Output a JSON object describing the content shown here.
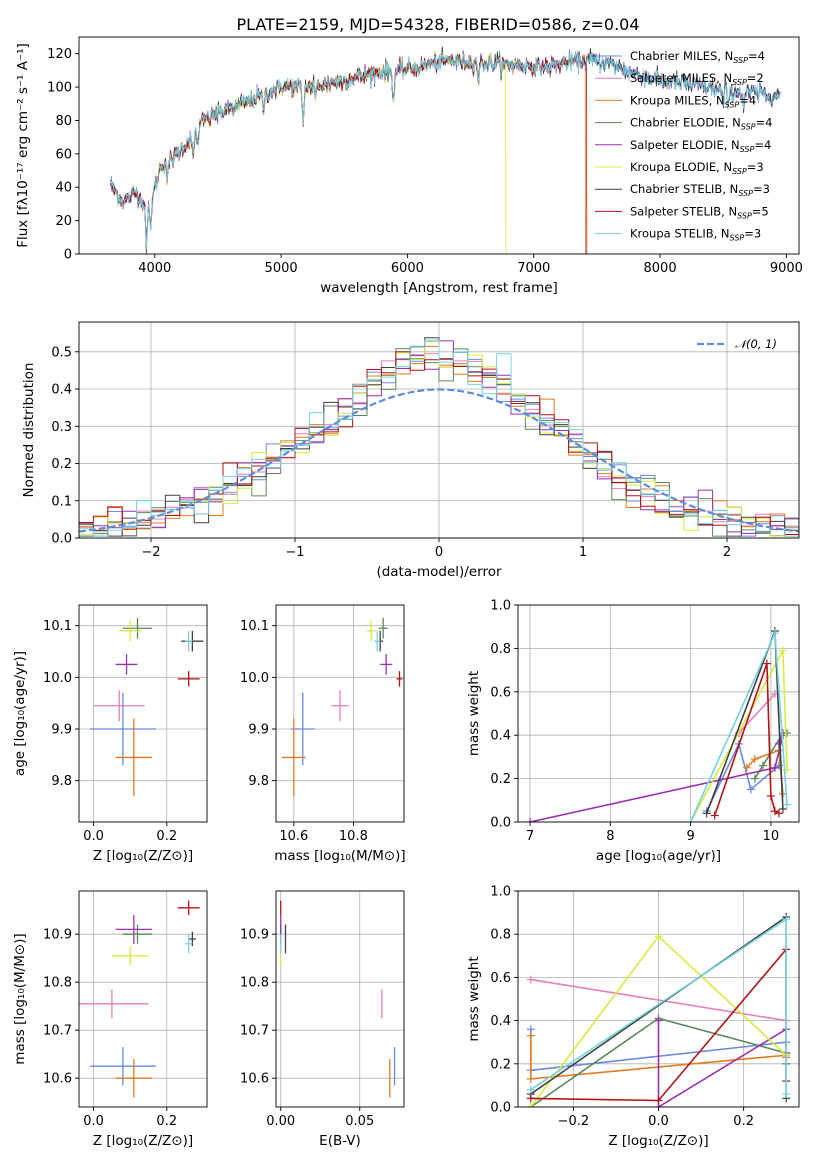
{
  "figure": {
    "title": "PLATE=2159, MJD=54328, FIBERID=0586, z=0.04"
  },
  "colors": {
    "chabrier_miles": "#6a8ae0",
    "salpeter_miles": "#e67fb9",
    "kroupa_miles": "#e07b23",
    "chabrier_elodie": "#5a8a5a",
    "salpeter_elodie": "#9b30b0",
    "kroupa_elodie": "#d4ec40",
    "chabrier_stelib": "#404040",
    "salpeter_stelib": "#b01414",
    "kroupa_stelib": "#74d3e0"
  },
  "legend_spectrum": [
    {
      "key": "chabrier_miles",
      "label": "Chabrier MILES, N",
      "sub": "SSP",
      "tail": "=4"
    },
    {
      "key": "salpeter_miles",
      "label": "Salpeter MILES, N",
      "sub": "SSP",
      "tail": "=2"
    },
    {
      "key": "kroupa_miles",
      "label": "Kroupa MILES, N",
      "sub": "SSP",
      "tail": "=4"
    },
    {
      "key": "chabrier_elodie",
      "label": "Chabrier ELODIE, N",
      "sub": "SSP",
      "tail": "=4"
    },
    {
      "key": "salpeter_elodie",
      "label": "Salpeter ELODIE, N",
      "sub": "SSP",
      "tail": "=4"
    },
    {
      "key": "kroupa_elodie",
      "label": "Kroupa ELODIE, N",
      "sub": "SSP",
      "tail": "=3"
    },
    {
      "key": "chabrier_stelib",
      "label": "Chabrier STELIB, N",
      "sub": "SSP",
      "tail": "=3"
    },
    {
      "key": "salpeter_stelib",
      "label": "Salpeter STELIB, N",
      "sub": "SSP",
      "tail": "=5"
    },
    {
      "key": "kroupa_stelib",
      "label": "Kroupa STELIB, N",
      "sub": "SSP",
      "tail": "=3"
    }
  ],
  "chart_data": [
    {
      "id": "spectrum",
      "type": "line",
      "xlabel": "wavelength [Angstrom, rest frame]",
      "ylabel": "Flux [fλ10⁻¹⁷ erg cm⁻² s⁻¹ A⁻¹]",
      "xlim": [
        3400,
        9100
      ],
      "ylim": [
        0,
        130
      ],
      "xticks": [
        4000,
        5000,
        6000,
        7000,
        8000,
        9000
      ],
      "yticks": [
        0,
        20,
        40,
        60,
        80,
        100,
        120
      ],
      "continuum": {
        "x": [
          3650,
          3750,
          3850,
          3950,
          4050,
          4150,
          4250,
          4400,
          4550,
          4700,
          4850,
          5000,
          5150,
          5300,
          5500,
          5700,
          5900,
          6100,
          6300,
          6500,
          6700,
          6900,
          7100,
          7300,
          7450,
          7600,
          7800,
          8000,
          8200,
          8400,
          8600,
          8800,
          8950
        ],
        "y": [
          42,
          31,
          37,
          27,
          53,
          58,
          66,
          81,
          86,
          90,
          95,
          100,
          100,
          101,
          104,
          108,
          110,
          112,
          116,
          115,
          114,
          113,
          112,
          115,
          116,
          114,
          108,
          104,
          102,
          99,
          97,
          96,
          95
        ]
      },
      "absorption": [
        {
          "x": 3934,
          "depth": 22
        },
        {
          "x": 3968,
          "depth": 18
        },
        {
          "x": 4101,
          "depth": 10
        },
        {
          "x": 4304,
          "depth": 16
        },
        {
          "x": 4340,
          "depth": 10
        },
        {
          "x": 4861,
          "depth": 8
        },
        {
          "x": 5175,
          "depth": 22
        },
        {
          "x": 5270,
          "depth": 8
        },
        {
          "x": 5890,
          "depth": 20
        },
        {
          "x": 6563,
          "depth": 10
        },
        {
          "x": 8498,
          "depth": 8
        },
        {
          "x": 8542,
          "depth": 10
        },
        {
          "x": 8662,
          "depth": 9
        }
      ],
      "model_end": [
        {
          "key": "kroupa_elodie",
          "x_end": 6780,
          "start": 3930
        },
        {
          "key": "salpeter_stelib",
          "x_end": 7420
        },
        {
          "key": "kroupa_miles",
          "x_end": 7410
        }
      ]
    },
    {
      "id": "residuals",
      "type": "histogram",
      "xlabel": "(data-model)/error",
      "ylabel": "Normed distribution",
      "xlim": [
        -2.5,
        2.5
      ],
      "ylim": [
        0,
        0.58
      ],
      "xticks": [
        -2,
        -1,
        0,
        1,
        2
      ],
      "yticks": [
        0.0,
        0.1,
        0.2,
        0.3,
        0.4,
        0.5
      ],
      "legend": "𝒩(0, 1)",
      "bin_width": 0.1,
      "normal": {
        "mean": 0,
        "sigma": 1
      }
    },
    {
      "id": "age_vs_Z",
      "type": "errorbar",
      "xlabel": "Z [log₁₀(Z/Z⊙)]",
      "ylabel": "age  [log₁₀(age/yr)]",
      "xlim": [
        -0.04,
        0.31
      ],
      "ylim": [
        9.72,
        10.14
      ],
      "xticks": [
        0.0,
        0.2
      ],
      "yticks": [
        9.8,
        9.9,
        10.0,
        10.1
      ],
      "points": [
        {
          "key": "chabrier_miles",
          "x": 0.08,
          "xerr": 0.09,
          "y": 9.9,
          "yerr": 0.07
        },
        {
          "key": "salpeter_miles",
          "x": 0.07,
          "xerr": 0.07,
          "y": 9.945,
          "yerr": 0.03
        },
        {
          "key": "kroupa_miles",
          "x": 0.11,
          "xerr": 0.05,
          "y": 9.845,
          "yerr": 0.075
        },
        {
          "key": "chabrier_elodie",
          "x": 0.12,
          "xerr": 0.04,
          "y": 10.095,
          "yerr": 0.02
        },
        {
          "key": "salpeter_elodie",
          "x": 0.09,
          "xerr": 0.03,
          "y": 10.025,
          "yerr": 0.02
        },
        {
          "key": "kroupa_elodie",
          "x": 0.1,
          "xerr": 0.03,
          "y": 10.09,
          "yerr": 0.02
        },
        {
          "key": "chabrier_stelib",
          "x": 0.27,
          "xerr": 0.03,
          "y": 10.07,
          "yerr": 0.02
        },
        {
          "key": "salpeter_stelib",
          "x": 0.26,
          "xerr": 0.03,
          "y": 9.997,
          "yerr": 0.015
        },
        {
          "key": "kroupa_stelib",
          "x": 0.26,
          "xerr": 0.01,
          "y": 10.07,
          "yerr": 0.02
        }
      ]
    },
    {
      "id": "age_vs_mass",
      "type": "errorbar",
      "xlabel": "mass [log₁₀(M/M⊙)]",
      "ylabel": "",
      "xlim": [
        10.54,
        10.97
      ],
      "ylim": [
        9.72,
        10.14
      ],
      "xticks": [
        10.6,
        10.8
      ],
      "yticks": [
        9.8,
        9.9,
        10.0,
        10.1
      ],
      "points": [
        {
          "key": "chabrier_miles",
          "x": 10.63,
          "xerr": 0.04,
          "y": 9.9,
          "yerr": 0.07
        },
        {
          "key": "salpeter_miles",
          "x": 10.755,
          "xerr": 0.03,
          "y": 9.945,
          "yerr": 0.03
        },
        {
          "key": "kroupa_miles",
          "x": 10.6,
          "xerr": 0.04,
          "y": 9.845,
          "yerr": 0.075
        },
        {
          "key": "chabrier_elodie",
          "x": 10.9,
          "xerr": 0.015,
          "y": 10.095,
          "yerr": 0.02
        },
        {
          "key": "salpeter_elodie",
          "x": 10.91,
          "xerr": 0.02,
          "y": 10.025,
          "yerr": 0.02
        },
        {
          "key": "kroupa_elodie",
          "x": 10.86,
          "xerr": 0.015,
          "y": 10.09,
          "yerr": 0.02
        },
        {
          "key": "chabrier_stelib",
          "x": 10.89,
          "xerr": 0.01,
          "y": 10.07,
          "yerr": 0.02
        },
        {
          "key": "salpeter_stelib",
          "x": 10.955,
          "xerr": 0.01,
          "y": 9.997,
          "yerr": 0.015
        },
        {
          "key": "kroupa_stelib",
          "x": 10.88,
          "xerr": 0.01,
          "y": 10.07,
          "yerr": 0.02
        }
      ]
    },
    {
      "id": "weight_vs_age",
      "type": "line",
      "xlabel": "age  [log₁₀(age/yr)]",
      "ylabel": "mass weight",
      "xlim": [
        6.85,
        10.35
      ],
      "ylim": [
        0,
        1
      ],
      "xticks": [
        7,
        8,
        9,
        10
      ],
      "yticks": [
        0.0,
        0.2,
        0.4,
        0.6,
        0.8,
        1.0
      ],
      "series": [
        {
          "key": "chabrier_miles",
          "x": [
            9.2,
            9.6,
            9.75,
            10.1
          ],
          "y": [
            0.05,
            0.36,
            0.15,
            0.26
          ]
        },
        {
          "key": "salpeter_miles",
          "x": [
            9.6,
            10.05
          ],
          "y": [
            0.41,
            0.59
          ]
        },
        {
          "key": "kroupa_miles",
          "x": [
            9.7,
            9.8,
            10.1,
            10.15
          ],
          "y": [
            0.25,
            0.29,
            0.33,
            0.13
          ]
        },
        {
          "key": "chabrier_elodie",
          "x": [
            9.8,
            9.9,
            10.15,
            10.2
          ],
          "y": [
            0.2,
            0.26,
            0.41,
            0.41
          ]
        },
        {
          "key": "salpeter_elodie",
          "x": [
            7.0,
            10.05,
            10.15,
            10.1
          ],
          "y": [
            0.0,
            0.25,
            0.4,
            0.36
          ]
        },
        {
          "key": "kroupa_elodie",
          "x": [
            9.0,
            10.15,
            10.2
          ],
          "y": [
            0.0,
            0.79,
            0.24
          ]
        },
        {
          "key": "chabrier_stelib",
          "x": [
            9.2,
            10.05,
            10.15
          ],
          "y": [
            0.04,
            0.88,
            0.06
          ]
        },
        {
          "key": "salpeter_stelib",
          "x": [
            9.3,
            9.95,
            10.0,
            10.05,
            10.1
          ],
          "y": [
            0.03,
            0.73,
            0.12,
            0.05,
            0.04
          ]
        },
        {
          "key": "kroupa_stelib",
          "x": [
            9.0,
            10.05,
            10.2
          ],
          "y": [
            0.0,
            0.87,
            0.08
          ]
        }
      ]
    },
    {
      "id": "mass_vs_Z",
      "type": "errorbar",
      "xlabel": "Z [log₁₀(Z/Z⊙)]",
      "ylabel": "mass [log₁₀(M/M⊙)]",
      "xlim": [
        -0.04,
        0.31
      ],
      "ylim": [
        10.54,
        10.99
      ],
      "xticks": [
        0.0,
        0.2
      ],
      "yticks": [
        10.6,
        10.7,
        10.8,
        10.9
      ],
      "points": [
        {
          "key": "chabrier_miles",
          "x": 0.08,
          "xerr": 0.09,
          "y": 10.625,
          "yerr": 0.04
        },
        {
          "key": "salpeter_miles",
          "x": 0.05,
          "xerr": 0.1,
          "y": 10.755,
          "yerr": 0.03
        },
        {
          "key": "kroupa_miles",
          "x": 0.11,
          "xerr": 0.05,
          "y": 10.6,
          "yerr": 0.04
        },
        {
          "key": "chabrier_elodie",
          "x": 0.12,
          "xerr": 0.04,
          "y": 10.9,
          "yerr": 0.02
        },
        {
          "key": "salpeter_elodie",
          "x": 0.11,
          "xerr": 0.05,
          "y": 10.91,
          "yerr": 0.03
        },
        {
          "key": "kroupa_elodie",
          "x": 0.1,
          "xerr": 0.05,
          "y": 10.855,
          "yerr": 0.02
        },
        {
          "key": "chabrier_stelib",
          "x": 0.27,
          "xerr": 0.01,
          "y": 10.89,
          "yerr": 0.015
        },
        {
          "key": "salpeter_stelib",
          "x": 0.26,
          "xerr": 0.03,
          "y": 10.955,
          "yerr": 0.015
        },
        {
          "key": "kroupa_stelib",
          "x": 0.26,
          "xerr": 0.01,
          "y": 10.88,
          "yerr": 0.02
        }
      ]
    },
    {
      "id": "mass_vs_ebv",
      "type": "errorbar",
      "xlabel": "E(B-V)",
      "ylabel": "",
      "xlim": [
        -0.003,
        0.078
      ],
      "ylim": [
        10.54,
        10.99
      ],
      "xticks": [
        0.0,
        0.05
      ],
      "yticks": [
        10.6,
        10.7,
        10.8,
        10.9
      ],
      "points": [
        {
          "key": "chabrier_miles",
          "x": 0.072,
          "xerr": 0.0,
          "y": 10.625,
          "yerr": 0.04
        },
        {
          "key": "salpeter_miles",
          "x": 0.064,
          "xerr": 0.0,
          "y": 10.755,
          "yerr": 0.03
        },
        {
          "key": "kroupa_miles",
          "x": 0.069,
          "xerr": 0.0,
          "y": 10.6,
          "yerr": 0.04
        },
        {
          "key": "chabrier_elodie",
          "x": 0.0,
          "xerr": 0.0,
          "y": 10.9,
          "yerr": 0.02
        },
        {
          "key": "salpeter_elodie",
          "x": 0.0,
          "xerr": 0.0,
          "y": 10.91,
          "yerr": 0.03
        },
        {
          "key": "kroupa_elodie",
          "x": 0.0,
          "xerr": 0.0,
          "y": 10.855,
          "yerr": 0.02
        },
        {
          "key": "chabrier_stelib",
          "x": 0.003,
          "xerr": 0.0,
          "y": 10.89,
          "yerr": 0.03
        },
        {
          "key": "salpeter_stelib",
          "x": 0.0,
          "xerr": 0.0,
          "y": 10.955,
          "yerr": 0.015
        },
        {
          "key": "kroupa_stelib",
          "x": 0.0,
          "xerr": 0.0,
          "y": 10.88,
          "yerr": 0.02
        }
      ]
    },
    {
      "id": "weight_vs_Z",
      "type": "line",
      "xlabel": "Z [log₁₀(Z/Z⊙)]",
      "ylabel": "mass weight",
      "xlim": [
        -0.33,
        0.33
      ],
      "ylim": [
        0,
        1
      ],
      "xticks": [
        -0.2,
        0.0,
        0.2
      ],
      "yticks": [
        0.0,
        0.2,
        0.4,
        0.6,
        0.8,
        1.0
      ],
      "series": [
        {
          "key": "chabrier_miles",
          "x": [
            -0.3,
            -0.3,
            0.3
          ],
          "y": [
            0.36,
            0.17,
            0.3
          ]
        },
        {
          "key": "salpeter_miles",
          "x": [
            -0.3,
            0.3
          ],
          "y": [
            0.59,
            0.4
          ]
        },
        {
          "key": "kroupa_miles",
          "x": [
            -0.3,
            -0.3,
            0.3,
            0.3
          ],
          "y": [
            0.33,
            0.13,
            0.24,
            0.23
          ]
        },
        {
          "key": "chabrier_elodie",
          "x": [
            -0.3,
            0.0,
            0.3,
            0.3
          ],
          "y": [
            0.0,
            0.41,
            0.25,
            0.2
          ]
        },
        {
          "key": "salpeter_elodie",
          "x": [
            0.0,
            0.0,
            0.3,
            0.3
          ],
          "y": [
            0.4,
            0.0,
            0.36,
            0.25
          ]
        },
        {
          "key": "kroupa_elodie",
          "x": [
            -0.3,
            0.0,
            0.3
          ],
          "y": [
            0.0,
            0.79,
            0.24
          ]
        },
        {
          "key": "chabrier_stelib",
          "x": [
            -0.3,
            0.3,
            0.3
          ],
          "y": [
            0.06,
            0.88,
            0.04
          ]
        },
        {
          "key": "salpeter_stelib",
          "x": [
            -0.3,
            0.0,
            0.3,
            0.3
          ],
          "y": [
            0.04,
            0.03,
            0.73,
            0.12
          ]
        },
        {
          "key": "kroupa_stelib",
          "x": [
            -0.3,
            0.3,
            0.3
          ],
          "y": [
            0.08,
            0.87,
            0.06
          ]
        }
      ]
    }
  ]
}
